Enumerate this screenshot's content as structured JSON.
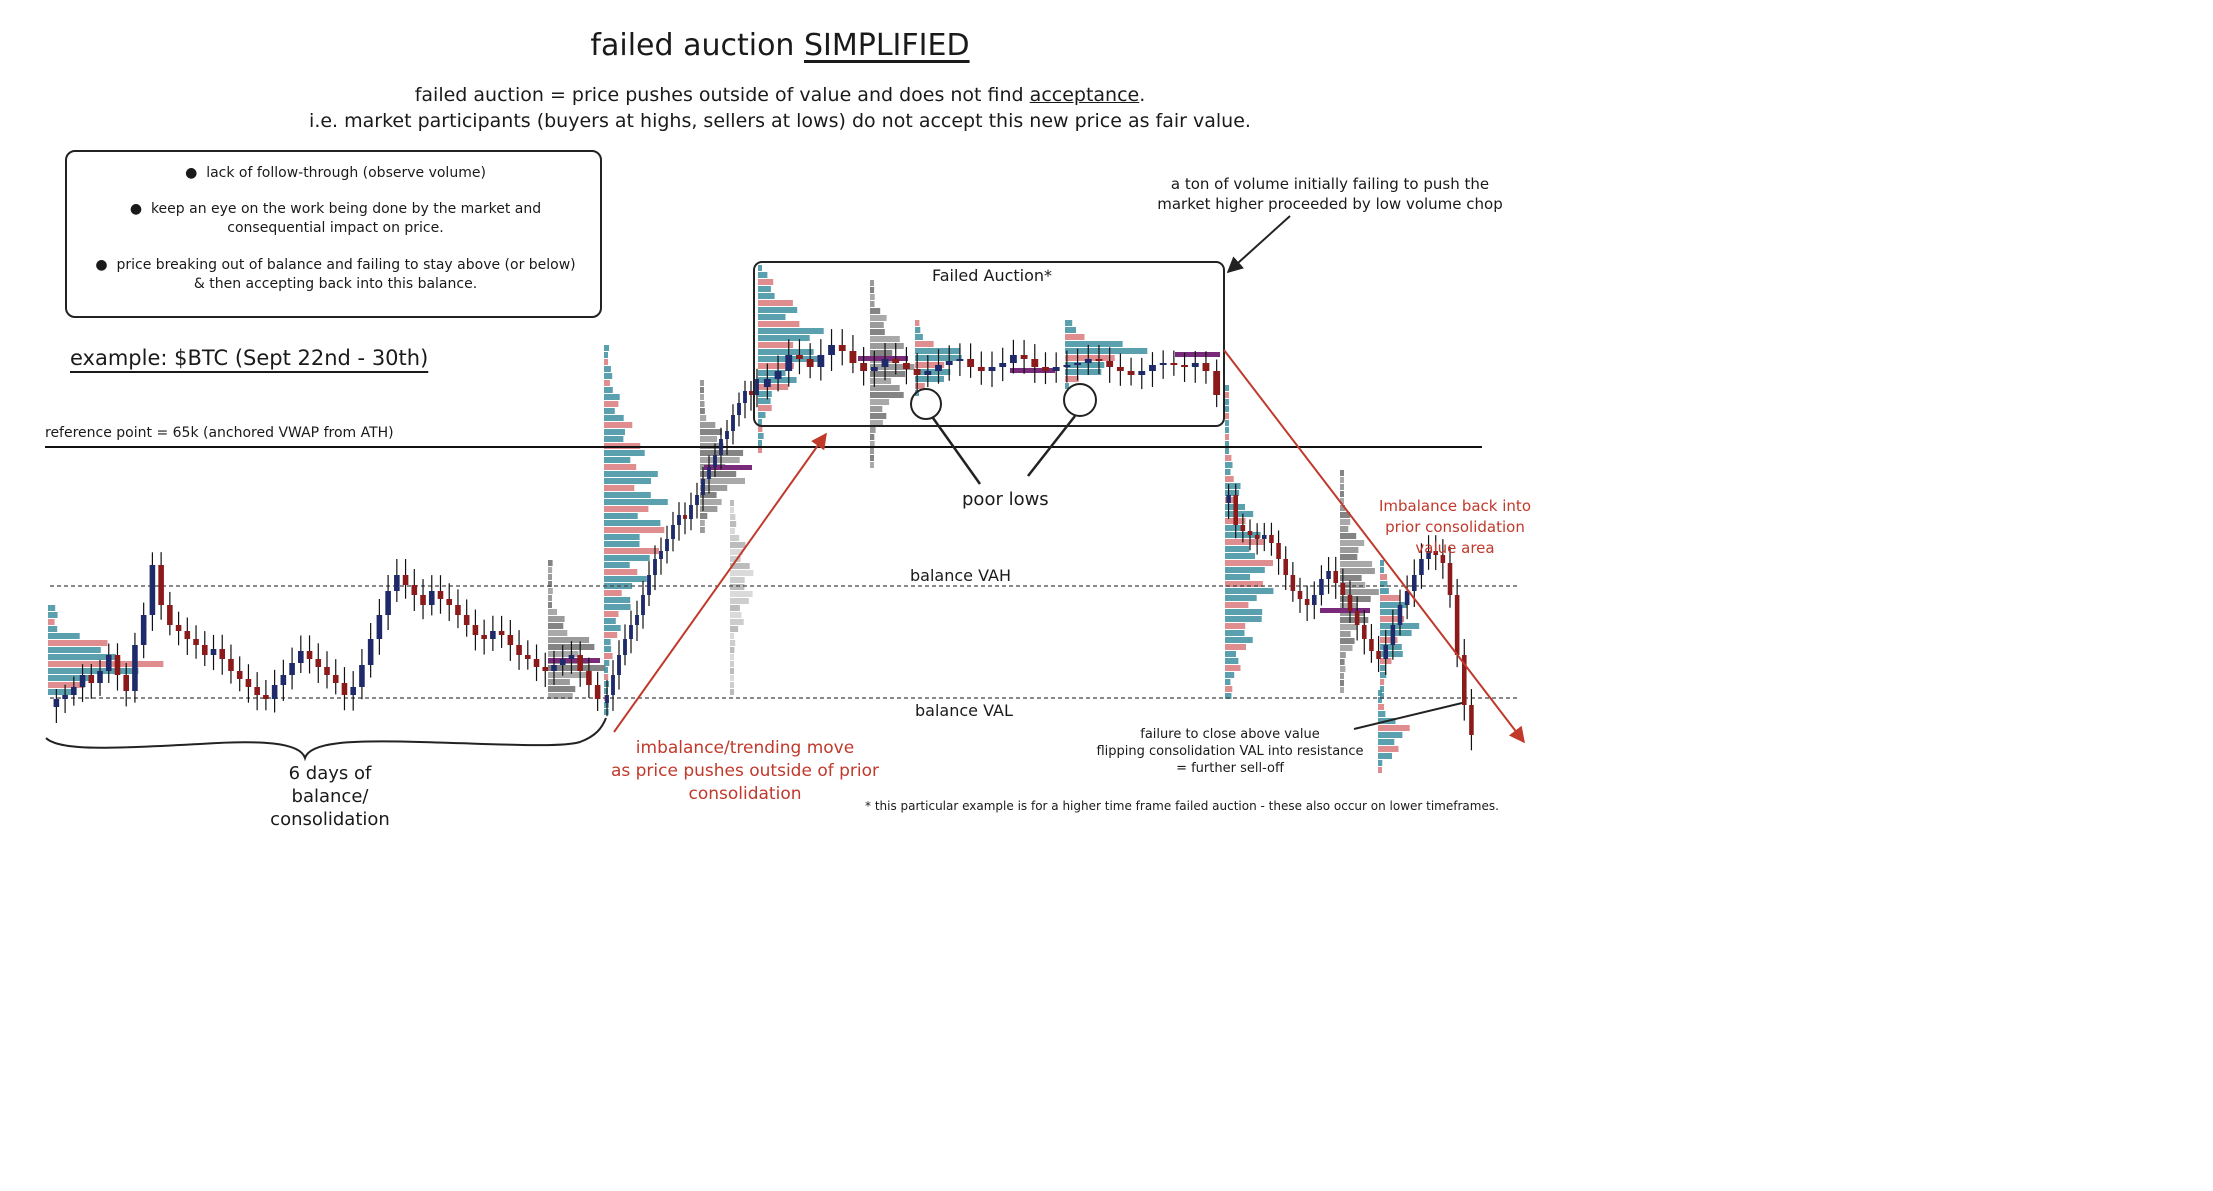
{
  "title": {
    "prefix": "failed auction ",
    "emphasis": "SIMPLIFIED"
  },
  "definition": {
    "line1_prefix": "failed auction = price pushes outside of value and does not find ",
    "line1_emphasis": "acceptance",
    "line1_suffix": ".",
    "line2": "i.e. market participants (buyers at highs, sellers at lows) do not accept this new price as fair value."
  },
  "notes": [
    {
      "bullet": "●",
      "lines": [
        "lack of follow-through (observe volume)"
      ]
    },
    {
      "bullet": "●",
      "lines": [
        "keep an eye on the work being done by the market and",
        "consequential impact on price."
      ]
    },
    {
      "bullet": "●",
      "lines": [
        "price breaking out of balance and failing to stay above (or below)",
        "& then accepting back into this balance."
      ]
    }
  ],
  "example_label": "example: $BTC (Sept 22nd - 30th)",
  "reference_label": "reference point = 65k (anchored VWAP from ATH)",
  "annotations": {
    "failed_auction": "Failed Auction*",
    "volume_note": [
      "a ton of volume initially failing to push the",
      "market higher proceeded by low volume chop"
    ],
    "poor_lows": "poor lows",
    "balance_vah": "balance VAH",
    "balance_val": "balance VAL",
    "balance_days": [
      "6 days of",
      "balance/",
      "consolidation"
    ],
    "trend_move": [
      "imbalance/trending move",
      "as price pushes outside of prior",
      "consolidation"
    ],
    "imbalance_back": [
      "Imbalance back into",
      "prior consolidation",
      "value area"
    ],
    "failure_close": [
      "failure to close above value",
      "flipping consolidation VAL into resistance",
      "= further sell-off"
    ],
    "footnote": "* this particular example is for a higher time frame failed auction - these also occur on lower timeframes."
  },
  "colors": {
    "bull_candle": "#1f2a6b",
    "bear_candle": "#8b1a1a",
    "volume_teal": "#3e8fa0",
    "volume_red": "#d9797a",
    "volume_gray": "#8a8a8a",
    "poc": "#7a2a7a",
    "arrow_red": "#c0392b"
  },
  "chart_data": {
    "type": "candlestick",
    "instrument": "$BTC",
    "date_range": "Sept 22nd - 30th",
    "reference_level": 65000,
    "levels": [
      "reference point",
      "balance VAH",
      "balance VAL"
    ],
    "series": [
      {
        "segment": "balance",
        "close": [
          0.08,
          0.1,
          0.14,
          0.2,
          0.16,
          0.22,
          0.3,
          0.2,
          0.12,
          0.35,
          0.5,
          0.75,
          0.55,
          0.45,
          0.42,
          0.38,
          0.35,
          0.3,
          0.33,
          0.28,
          0.22,
          0.18,
          0.14,
          0.1,
          0.08,
          0.15,
          0.2,
          0.26,
          0.32,
          0.28,
          0.24,
          0.2,
          0.16,
          0.1,
          0.14,
          0.25,
          0.38,
          0.5,
          0.62,
          0.7,
          0.65,
          0.6,
          0.55,
          0.62,
          0.58,
          0.55,
          0.5,
          0.45,
          0.4,
          0.38,
          0.42,
          0.4,
          0.35,
          0.3,
          0.28,
          0.24,
          0.22,
          0.25,
          0.28,
          0.3,
          0.22,
          0.15,
          0.08
        ]
      },
      {
        "segment": "breakout",
        "close": [
          0.1,
          0.2,
          0.3,
          0.38,
          0.45,
          0.5,
          0.6,
          0.7,
          0.78,
          0.82,
          0.88,
          0.95,
          1.0,
          0.98,
          1.05,
          1.1,
          1.18,
          1.24,
          1.3,
          1.38,
          1.42,
          1.5,
          1.56,
          1.62,
          1.6,
          1.68
        ]
      },
      {
        "segment": "failed_auction",
        "close": [
          1.68,
          1.72,
          1.8,
          1.78,
          1.74,
          1.8,
          1.85,
          1.82,
          1.76,
          1.72,
          1.74,
          1.78,
          1.76,
          1.73,
          1.7,
          1.72,
          1.75,
          1.77,
          1.78,
          1.74,
          1.72,
          1.74,
          1.76,
          1.8,
          1.78,
          1.74,
          1.72,
          1.74,
          1.75,
          1.76,
          1.78,
          1.77,
          1.74,
          1.72,
          1.7,
          1.72,
          1.75,
          1.76,
          1.75,
          1.74,
          1.76,
          1.72,
          1.6
        ]
      },
      {
        "segment": "sell_off",
        "close": [
          1.1,
          0.95,
          0.92,
          0.9,
          0.88,
          0.9,
          0.86,
          0.78,
          0.7,
          0.62,
          0.58,
          0.55,
          0.6,
          0.68,
          0.72,
          0.66,
          0.6,
          0.52,
          0.45,
          0.38,
          0.32,
          0.28,
          0.35,
          0.45,
          0.55,
          0.62,
          0.7,
          0.78,
          0.82,
          0.8,
          0.76,
          0.6,
          0.3,
          0.05,
          -0.1
        ]
      }
    ]
  }
}
